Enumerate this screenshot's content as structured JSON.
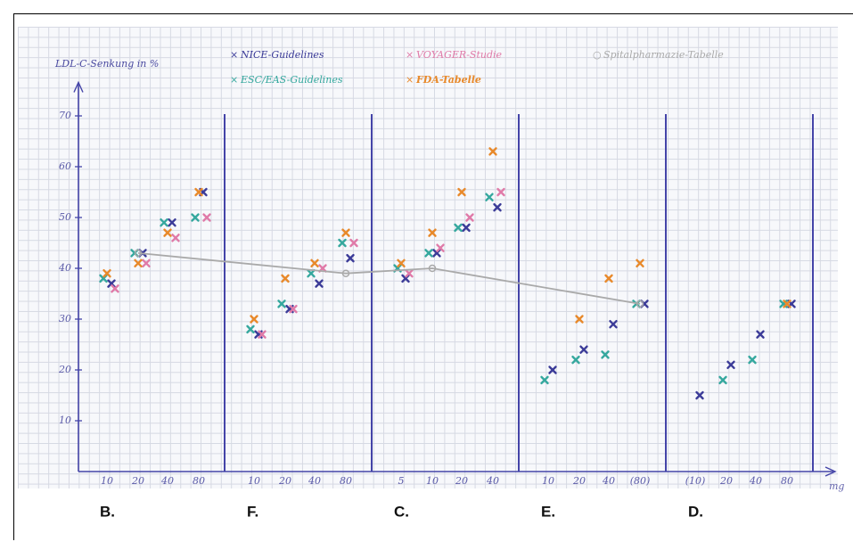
{
  "chart_data": {
    "type": "scatter",
    "y_label": "LDL-C-Senkung in %",
    "x_label": "mg",
    "ylim": [
      0,
      75
    ],
    "yticks": [
      10,
      20,
      30,
      40,
      50,
      60,
      70
    ],
    "groups": [
      "B.",
      "F.",
      "C.",
      "E.",
      "D."
    ],
    "categories": [
      [
        "10",
        "20",
        "40",
        "80"
      ],
      [
        "10",
        "20",
        "40",
        "80"
      ],
      [
        "5",
        "10",
        "20",
        "40"
      ],
      [
        "10",
        "20",
        "40",
        "(80)"
      ],
      [
        "(10)",
        "20",
        "40",
        "80"
      ]
    ],
    "series": [
      {
        "name": "NICE-Guidelines",
        "color": "#3b3b98",
        "marker": "x",
        "values": [
          [
            37,
            43,
            49,
            55
          ],
          [
            27,
            32,
            37,
            42
          ],
          [
            38,
            43,
            48,
            52
          ],
          [
            20,
            24,
            29,
            33
          ],
          [
            15,
            21,
            27,
            33
          ]
        ]
      },
      {
        "name": "ESC/EAS-Guidelines",
        "color": "#35a89e",
        "marker": "x",
        "values": [
          [
            38,
            43,
            49,
            50
          ],
          [
            28,
            33,
            39,
            45
          ],
          [
            40,
            43,
            48,
            54
          ],
          [
            18,
            22,
            23,
            33
          ],
          [
            null,
            18,
            22,
            33
          ]
        ]
      },
      {
        "name": "VOYAGER-Studie",
        "color": "#e07aa8",
        "marker": "x",
        "values": [
          [
            36,
            41,
            46,
            50
          ],
          [
            27,
            32,
            40,
            45
          ],
          [
            39,
            44,
            50,
            55
          ],
          [
            null,
            null,
            null,
            null
          ],
          [
            null,
            null,
            null,
            null
          ]
        ]
      },
      {
        "name": "FDA-Tabelle",
        "color": "#e8892a",
        "marker": "x",
        "values": [
          [
            39,
            41,
            47,
            55
          ],
          [
            30,
            38,
            41,
            47
          ],
          [
            41,
            47,
            55,
            63
          ],
          [
            null,
            30,
            38,
            41
          ],
          [
            null,
            null,
            null,
            33
          ]
        ]
      },
      {
        "name": "Spitalpharmazie-Tabelle",
        "color": "#a9a9a9",
        "marker": "o",
        "line": true,
        "values": [
          [
            null,
            43,
            null,
            null
          ],
          [
            null,
            null,
            null,
            39
          ],
          [
            null,
            40,
            null,
            null
          ],
          [
            null,
            null,
            null,
            33
          ],
          [
            null,
            null,
            null,
            null
          ]
        ]
      }
    ]
  }
}
